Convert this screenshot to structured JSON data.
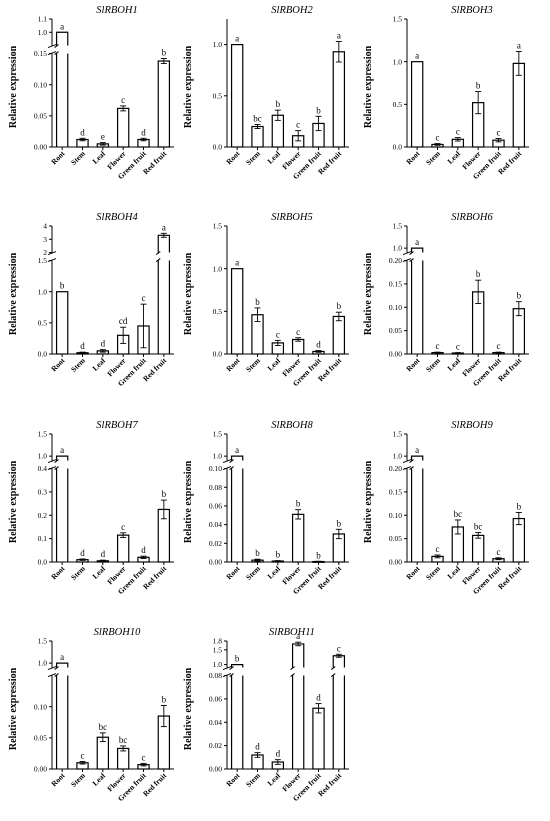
{
  "figure": {
    "categories": [
      "Root",
      "Stem",
      "Leaf",
      "Flower",
      "Green fruit",
      "Red fruit"
    ],
    "ylabel": "Relative expression"
  },
  "chart_data": [
    {
      "type": "bar",
      "title": "SlRBOH1",
      "ylabel": "Relative expression",
      "categories": [
        "Root",
        "Stem",
        "Leaf",
        "Flower",
        "Green fruit",
        "Red fruit"
      ],
      "values": [
        1.0,
        0.012,
        0.005,
        0.062,
        0.012,
        0.138
      ],
      "errors": [
        0.0,
        0.002,
        0.002,
        0.004,
        0.002,
        0.004
      ],
      "letters": [
        "a",
        "d",
        "e",
        "c",
        "d",
        "b"
      ],
      "axis_break": {
        "lower": [
          0,
          0.15
        ],
        "upper": [
          0.9,
          1.1
        ]
      },
      "yticks_lower": [
        "0.00",
        "0.05",
        "0.10",
        "0.15"
      ],
      "yticks_upper": [
        "1.0",
        "1.1"
      ]
    },
    {
      "type": "bar",
      "title": "SlRBOH2",
      "ylabel": "Relative expression",
      "categories": [
        "Root",
        "Stem",
        "Leaf",
        "Flower",
        "Green fruit",
        "Red fruit"
      ],
      "values": [
        1.0,
        0.2,
        0.31,
        0.11,
        0.23,
        0.93
      ],
      "errors": [
        0.0,
        0.02,
        0.05,
        0.05,
        0.07,
        0.1
      ],
      "letters": [
        "a",
        "bc",
        "b",
        "c",
        "b",
        "a"
      ],
      "ylim": [
        0,
        1.25
      ],
      "yticks": [
        "0.0",
        "0.5",
        "1.0"
      ]
    },
    {
      "type": "bar",
      "title": "SlRBOH3",
      "ylabel": "Relative expression",
      "categories": [
        "Root",
        "Stem",
        "Leaf",
        "Flower",
        "Green fruit",
        "Red fruit"
      ],
      "values": [
        1.0,
        0.03,
        0.09,
        0.52,
        0.08,
        0.98
      ],
      "errors": [
        0.0,
        0.01,
        0.02,
        0.13,
        0.02,
        0.14
      ],
      "letters": [
        "a",
        "c",
        "c",
        "b",
        "c",
        "a"
      ],
      "ylim": [
        0,
        1.5
      ],
      "yticks": [
        "0.0",
        "0.5",
        "1.0",
        "1.5"
      ]
    },
    {
      "type": "bar",
      "title": "SlRBOH4",
      "ylabel": "Relative expression",
      "categories": [
        "Root",
        "Stem",
        "Leaf",
        "Flower",
        "Green fruit",
        "Red fruit"
      ],
      "values": [
        1.0,
        0.02,
        0.05,
        0.3,
        0.45,
        3.3
      ],
      "errors": [
        0.0,
        0.01,
        0.02,
        0.13,
        0.35,
        0.15
      ],
      "letters": [
        "b",
        "d",
        "d",
        "cd",
        "c",
        "a"
      ],
      "axis_break": {
        "lower": [
          0,
          1.5
        ],
        "upper": [
          2,
          4
        ]
      },
      "yticks_lower": [
        "0.0",
        "0.5",
        "1.0",
        "1.5"
      ],
      "yticks_upper": [
        "2",
        "3",
        "4"
      ]
    },
    {
      "type": "bar",
      "title": "SlRBOH5",
      "ylabel": "Relative expression",
      "categories": [
        "Root",
        "Stem",
        "Leaf",
        "Flower",
        "Green fruit",
        "Red fruit"
      ],
      "values": [
        1.0,
        0.46,
        0.13,
        0.17,
        0.03,
        0.44
      ],
      "errors": [
        0.0,
        0.08,
        0.03,
        0.02,
        0.01,
        0.05
      ],
      "letters": [
        "a",
        "b",
        "c",
        "c",
        "d",
        "b"
      ],
      "ylim": [
        0,
        1.5
      ],
      "yticks": [
        "0.0",
        "0.5",
        "1.0",
        "1.5"
      ]
    },
    {
      "type": "bar",
      "title": "SlRBOH6",
      "ylabel": "Relative expression",
      "categories": [
        "Root",
        "Stem",
        "Leaf",
        "Flower",
        "Green fruit",
        "Red fruit"
      ],
      "values": [
        1.0,
        0.003,
        0.002,
        0.133,
        0.003,
        0.097
      ],
      "errors": [
        0.0,
        0.001,
        0.001,
        0.025,
        0.001,
        0.015
      ],
      "letters": [
        "a",
        "c",
        "c",
        "b",
        "c",
        "b"
      ],
      "axis_break": {
        "lower": [
          0,
          0.2
        ],
        "upper": [
          0.9,
          1.5
        ]
      },
      "yticks_lower": [
        "0.00",
        "0.05",
        "0.10",
        "0.15",
        "0.20"
      ],
      "yticks_upper": [
        "1.0",
        "1.5"
      ]
    },
    {
      "type": "bar",
      "title": "SlRBOH7",
      "ylabel": "Relative expression",
      "categories": [
        "Root",
        "Stem",
        "Leaf",
        "Flower",
        "Green fruit",
        "Red fruit"
      ],
      "values": [
        1.0,
        0.01,
        0.005,
        0.115,
        0.02,
        0.225
      ],
      "errors": [
        0.0,
        0.003,
        0.003,
        0.01,
        0.005,
        0.04
      ],
      "letters": [
        "a",
        "d",
        "d",
        "c",
        "d",
        "b"
      ],
      "axis_break": {
        "lower": [
          0,
          0.4
        ],
        "upper": [
          0.9,
          1.5
        ]
      },
      "yticks_lower": [
        "0.0",
        "0.1",
        "0.2",
        "0.3",
        "0.4"
      ],
      "yticks_upper": [
        "1.0",
        "1.5"
      ]
    },
    {
      "type": "bar",
      "title": "SlRBOH8",
      "ylabel": "Relative expression",
      "categories": [
        "Root",
        "Stem",
        "Leaf",
        "Flower",
        "Green fruit",
        "Red fruit"
      ],
      "values": [
        1.0,
        0.002,
        0.001,
        0.051,
        0.0005,
        0.03
      ],
      "errors": [
        0.0,
        0.001,
        0.0005,
        0.005,
        0.0003,
        0.005
      ],
      "letters": [
        "a",
        "b",
        "b",
        "b",
        "b",
        "b"
      ],
      "axis_break": {
        "lower": [
          0,
          0.1
        ],
        "upper": [
          0.9,
          1.5
        ]
      },
      "yticks_lower": [
        "0.00",
        "0.02",
        "0.04",
        "0.06",
        "0.08",
        "0.10"
      ],
      "yticks_upper": [
        "1.0",
        "1.5"
      ]
    },
    {
      "type": "bar",
      "title": "SlRBOH9",
      "ylabel": "Relative expression",
      "categories": [
        "Root",
        "Stem",
        "Leaf",
        "Flower",
        "Green fruit",
        "Red fruit"
      ],
      "values": [
        1.0,
        0.012,
        0.075,
        0.057,
        0.007,
        0.093
      ],
      "errors": [
        0.0,
        0.003,
        0.015,
        0.006,
        0.002,
        0.013
      ],
      "letters": [
        "a",
        "c",
        "bc",
        "bc",
        "c",
        "b"
      ],
      "axis_break": {
        "lower": [
          0,
          0.2
        ],
        "upper": [
          0.9,
          1.5
        ]
      },
      "yticks_lower": [
        "0.00",
        "0.05",
        "0.10",
        "0.15",
        "0.20"
      ],
      "yticks_upper": [
        "1.0",
        "1.5"
      ]
    },
    {
      "type": "bar",
      "title": "SlRBOH10",
      "ylabel": "Relative expression",
      "categories": [
        "Root",
        "Stem",
        "Leaf",
        "Flower",
        "Green fruit",
        "Red fruit"
      ],
      "values": [
        1.0,
        0.01,
        0.051,
        0.033,
        0.007,
        0.085
      ],
      "errors": [
        0.0,
        0.002,
        0.007,
        0.004,
        0.002,
        0.017
      ],
      "letters": [
        "a",
        "c",
        "bc",
        "bc",
        "c",
        "b"
      ],
      "axis_break": {
        "lower": [
          0,
          0.15
        ],
        "upper": [
          0.9,
          1.5
        ]
      },
      "yticks_lower": [
        "0.00",
        "0.05",
        "0.10"
      ],
      "yticks_upper": [
        "1.0",
        "1.5"
      ]
    },
    {
      "type": "bar",
      "title": "SlRBOH11",
      "ylabel": "Relative expression",
      "categories": [
        "Root",
        "Stem",
        "Leaf",
        "Flower",
        "Green fruit",
        "Red fruit"
      ],
      "values": [
        1.0,
        0.012,
        0.006,
        1.7,
        0.052,
        1.3
      ],
      "errors": [
        0.0,
        0.002,
        0.002,
        0.06,
        0.004,
        0.05
      ],
      "letters": [
        "b",
        "d",
        "d",
        "a",
        "d",
        "c"
      ],
      "axis_break": {
        "lower": [
          0,
          0.08
        ],
        "upper": [
          0.9,
          1.8
        ]
      },
      "yticks_lower": [
        "0.00",
        "0.02",
        "0.04",
        "0.06",
        "0.08"
      ],
      "yticks_upper": [
        "1.0",
        "1.5",
        "1.8"
      ]
    }
  ]
}
